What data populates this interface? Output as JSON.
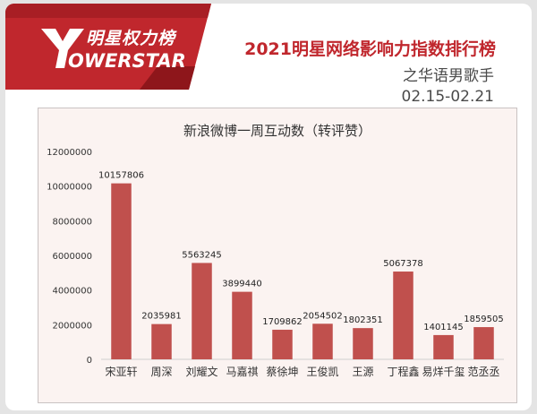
{
  "header": {
    "brand_cn": "明星权力榜",
    "brand_en": "OWERSTAR",
    "title": "2021明星网络影响力指数排行榜",
    "category": "之华语男歌手",
    "date_range": "02.15-02.21"
  },
  "colors": {
    "bar": "#c0504d",
    "banner": "#c0272d",
    "title": "#c0272d",
    "panel_bg": "#fbf3f1"
  },
  "chart_data": {
    "type": "bar",
    "title": "新浪微博一周互动数（转评赞）",
    "xlabel": "",
    "ylabel": "",
    "categories": [
      "宋亚轩",
      "周深",
      "刘耀文",
      "马嘉祺",
      "蔡徐坤",
      "王俊凯",
      "王源",
      "丁程鑫",
      "易烊千玺",
      "范丞丞"
    ],
    "values": [
      10157806,
      2035981,
      5563245,
      3899440,
      1709862,
      2054502,
      1802351,
      5067378,
      1401145,
      1859505
    ],
    "ylim": [
      0,
      12000000
    ],
    "yticks": [
      0,
      2000000,
      4000000,
      6000000,
      8000000,
      10000000,
      12000000
    ],
    "grid": false,
    "legend": "none"
  }
}
